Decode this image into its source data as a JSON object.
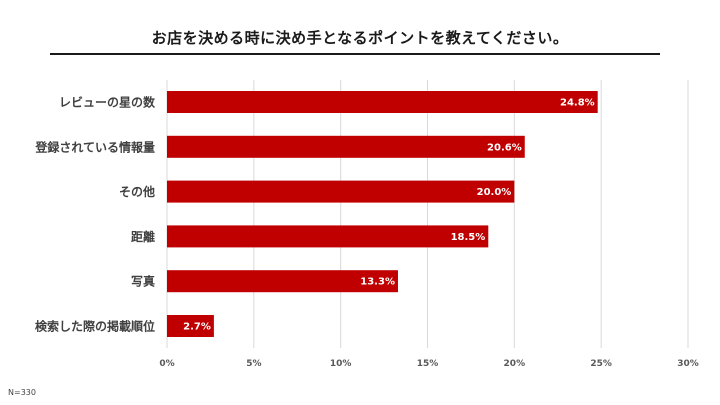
{
  "title": "お店を決める時に決め手となるポイントを教えてください。",
  "note": "N=330",
  "colors": {
    "bar": "#c00000",
    "bar_label": "#ffffff",
    "grid": "#d9d9d9",
    "axis_text": "#595959",
    "category_text": "#404040"
  },
  "chart_data": {
    "type": "bar",
    "orientation": "horizontal",
    "categories": [
      "レビューの星の数",
      "登録されている情報量",
      "その他",
      "距離",
      "写真",
      "検索した際の掲載順位"
    ],
    "values": [
      24.8,
      20.6,
      20.0,
      18.5,
      13.3,
      2.7
    ],
    "value_labels": [
      "24.8%",
      "20.6%",
      "20.0%",
      "18.5%",
      "13.3%",
      "2.7%"
    ],
    "x_ticks": [
      0,
      5,
      10,
      15,
      20,
      25,
      30
    ],
    "x_tick_labels": [
      "0%",
      "5%",
      "10%",
      "15%",
      "20%",
      "25%",
      "30%"
    ],
    "xlim": [
      0,
      30
    ],
    "grid": true,
    "legend": "none"
  }
}
